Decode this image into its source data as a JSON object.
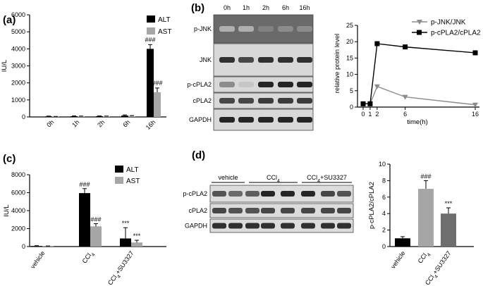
{
  "panels": {
    "a": {
      "label": "(a)"
    },
    "b": {
      "label": "(b)"
    },
    "c": {
      "label": "(c)"
    },
    "d": {
      "label": "(d)"
    }
  },
  "colors": {
    "black": "#000000",
    "gray": "#9a9a9a",
    "light_gray": "#a6a6a6",
    "dark_gray": "#6e6e6e",
    "series_gray": "#8c8c8c"
  },
  "chart_data": [
    {
      "id": "a",
      "type": "bar",
      "categories": [
        "0h",
        "1h",
        "2h",
        "6h",
        "16h"
      ],
      "series": [
        {
          "name": "ALT",
          "color": "#000000",
          "values": [
            30,
            40,
            40,
            80,
            4000
          ],
          "errors": [
            20,
            20,
            20,
            40,
            250
          ]
        },
        {
          "name": "AST",
          "color": "#a6a6a6",
          "values": [
            20,
            30,
            30,
            50,
            1450
          ],
          "errors": [
            10,
            20,
            20,
            30,
            250
          ]
        }
      ],
      "ylabel": "IU/L",
      "ylim": [
        0,
        6000
      ],
      "yticks": [
        0,
        1000,
        2000,
        3000,
        4000,
        5000,
        6000
      ],
      "annotations": [
        {
          "category": "16h",
          "series": "ALT",
          "text": "###"
        },
        {
          "category": "16h",
          "series": "AST",
          "text": "###"
        }
      ],
      "legend": "top-right"
    },
    {
      "id": "b_blot",
      "type": "western_blot",
      "lanes": [
        "0h",
        "1h",
        "2h",
        "6h",
        "16h"
      ],
      "rows": [
        "p-JNK",
        "JNK",
        "p-cPLA2",
        "cPLA2",
        "GAPDH"
      ]
    },
    {
      "id": "b",
      "type": "line",
      "x": [
        0,
        1,
        2,
        6,
        16
      ],
      "xticks": [
        "0",
        "1",
        "2",
        "6",
        "16"
      ],
      "series": [
        {
          "name": "p-JNK/JNK",
          "color": "#8c8c8c",
          "marker": "triangle-down",
          "values": [
            1,
            1,
            6.3,
            3.1,
            0.7
          ]
        },
        {
          "name": "p-cPLA2/cPLA2",
          "color": "#000000",
          "marker": "square",
          "values": [
            1,
            1,
            19.4,
            18.4,
            16.6
          ]
        }
      ],
      "xlabel": "time(h)",
      "ylabel": "relative protein level",
      "ylim": [
        0,
        25
      ],
      "yticks": [
        0,
        5,
        10,
        15,
        20,
        25
      ],
      "legend": "top-right"
    },
    {
      "id": "c",
      "type": "bar",
      "categories": [
        "vehicle",
        "CCl4",
        "CCl4+SU3327"
      ],
      "category_labels": [
        {
          "main": "vehicle"
        },
        {
          "main": "CCl",
          "sub": "4"
        },
        {
          "main": "CCl",
          "sub": "4",
          "tail": "+SU3327"
        }
      ],
      "series": [
        {
          "name": "ALT",
          "color": "#000000",
          "values": [
            60,
            5950,
            900
          ],
          "errors": [
            40,
            500,
            1200
          ]
        },
        {
          "name": "AST",
          "color": "#a6a6a6",
          "values": [
            40,
            2250,
            450
          ],
          "errors": [
            30,
            300,
            250
          ]
        }
      ],
      "ylabel": "IU/L",
      "ylim": [
        0,
        8000
      ],
      "yticks": [
        0,
        2000,
        4000,
        6000,
        8000
      ],
      "annotations": [
        {
          "category": "CCl4",
          "series": "ALT",
          "text": "###"
        },
        {
          "category": "CCl4",
          "series": "AST",
          "text": "###"
        },
        {
          "category": "CCl4+SU3327",
          "series": "ALT",
          "text": "***"
        },
        {
          "category": "CCl4+SU3327",
          "series": "AST",
          "text": "***"
        }
      ],
      "legend": "top-right"
    },
    {
      "id": "d_blot",
      "type": "western_blot",
      "groups": [
        {
          "main": "vehicle"
        },
        {
          "main": "CCl",
          "sub": "4"
        },
        {
          "main": "CCl",
          "sub": "4",
          "tail": "+SU3327"
        }
      ],
      "rows": [
        "p-cPLA2",
        "cPLA2",
        "GAPDH"
      ]
    },
    {
      "id": "d",
      "type": "bar",
      "categories": [
        "vehicle",
        "CCl4",
        "CCl4+SU3327"
      ],
      "category_labels": [
        {
          "main": "vehicle"
        },
        {
          "main": "CCl",
          "sub": "4"
        },
        {
          "main": "CCl",
          "sub": "4",
          "tail": "+SU3327"
        }
      ],
      "series": [
        {
          "colors": [
            "#000000",
            "#a6a6a6",
            "#6e6e6e"
          ],
          "values": [
            1.0,
            7.0,
            4.0
          ],
          "errors": [
            0.2,
            1.0,
            0.7
          ]
        }
      ],
      "ylabel": "p-cPLA2/cPLA2",
      "ylim": [
        0,
        10
      ],
      "yticks": [
        0,
        2,
        4,
        6,
        8,
        10
      ],
      "annotations": [
        {
          "category": "CCl4",
          "text": "###"
        },
        {
          "category": "CCl4+SU3327",
          "text": "***"
        }
      ]
    }
  ]
}
